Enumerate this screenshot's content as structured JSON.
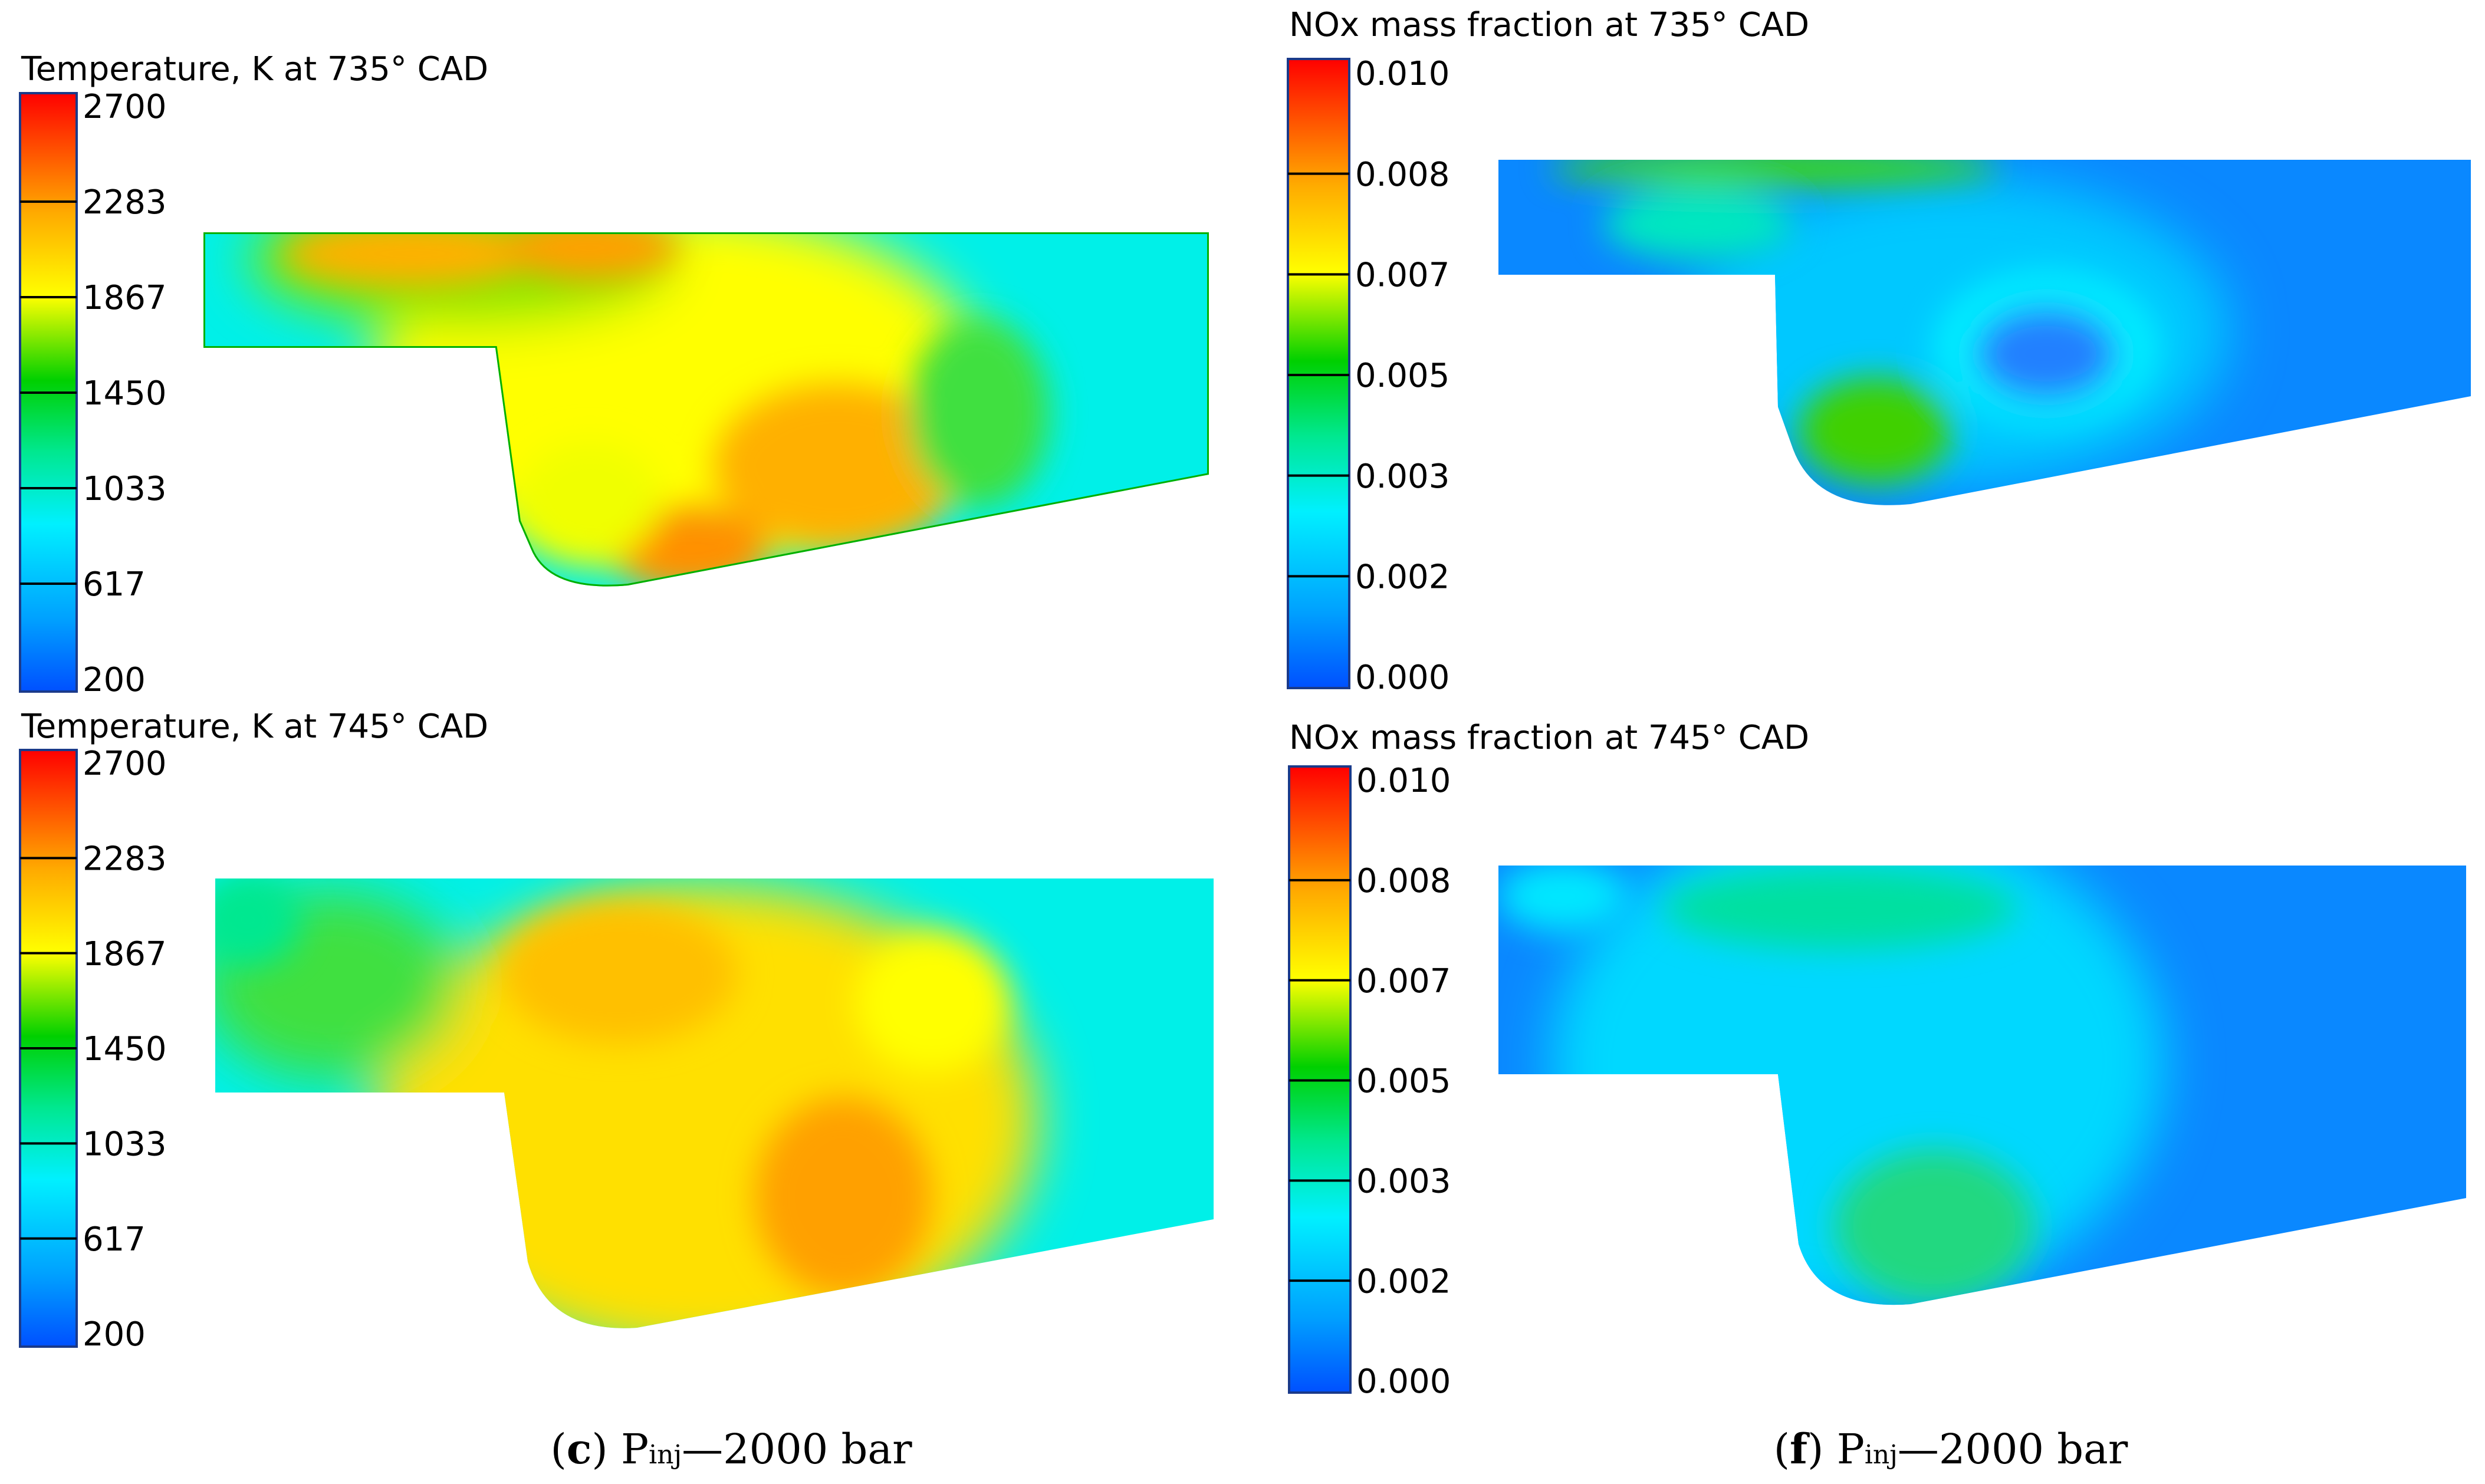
{
  "panels": [
    {
      "title": "Temperature, K at 735° CAD",
      "colorbar_ticks": [
        "2700",
        "2283",
        "1867",
        "1450",
        "1033",
        "617",
        "200"
      ],
      "field": "temperature"
    },
    {
      "title": "NOx mass fraction at 735° CAD",
      "colorbar_ticks": [
        "0.010",
        "0.008",
        "0.007",
        "0.005",
        "0.003",
        "0.002",
        "0.000"
      ],
      "field": "nox"
    },
    {
      "title": "Temperature, K at 745° CAD",
      "colorbar_ticks": [
        "2700",
        "2283",
        "1867",
        "1450",
        "1033",
        "617",
        "200"
      ],
      "field": "temperature"
    },
    {
      "title": "NOx mass fraction at 745° CAD",
      "colorbar_ticks": [
        "0.010",
        "0.008",
        "0.007",
        "0.005",
        "0.003",
        "0.002",
        "0.000"
      ],
      "field": "nox"
    }
  ],
  "captions": [
    {
      "letter": "c",
      "text_a": "P",
      "sub": "inj",
      "text_b": "—2000 bar"
    },
    {
      "letter": "f",
      "text_a": "P",
      "sub": "inj",
      "text_b": "—2000 bar"
    }
  ],
  "colormap": [
    "#0050ff",
    "#00aaff",
    "#00ffff",
    "#00ee88",
    "#00cc00",
    "#ffff00",
    "#ffb000",
    "#ff6000",
    "#ff0000"
  ]
}
